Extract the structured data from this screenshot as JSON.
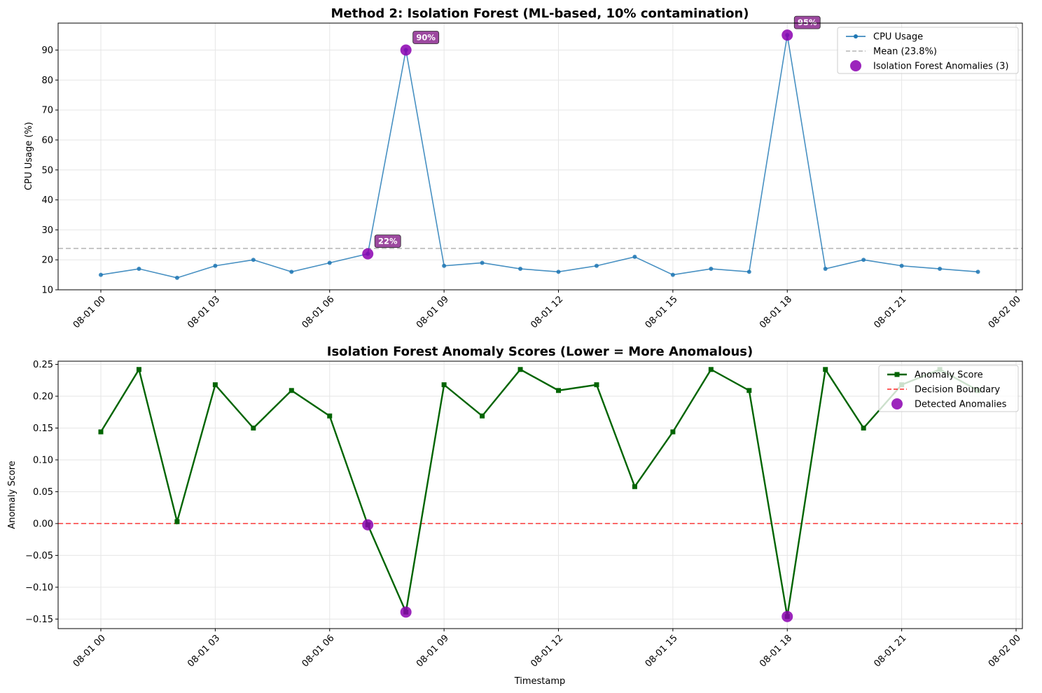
{
  "x_tick_labels": [
    "08-01 00",
    "08-01 03",
    "08-01 06",
    "08-01 09",
    "08-01 12",
    "08-01 15",
    "08-01 18",
    "08-01 21",
    "08-02 00"
  ],
  "colors": {
    "cpu_line": "#1f77b4",
    "mean_line": "#a9a9a9",
    "anomaly": "#8b00b0",
    "anomaly_label_bg": "#8b2a8f",
    "score_line": "#006400",
    "boundary": "#ff0000",
    "grid": "#e6e6e6"
  },
  "chart_data": [
    {
      "type": "line",
      "title": "Method 2: Isolation Forest (ML-based, 10% contamination)",
      "xlabel": "",
      "ylabel": "CPU Usage (%)",
      "x": [
        "08-01 00:00",
        "08-01 01:00",
        "08-01 02:00",
        "08-01 03:00",
        "08-01 04:00",
        "08-01 05:00",
        "08-01 06:00",
        "08-01 07:00",
        "08-01 08:00",
        "08-01 09:00",
        "08-01 10:00",
        "08-01 11:00",
        "08-01 12:00",
        "08-01 13:00",
        "08-01 14:00",
        "08-01 15:00",
        "08-01 16:00",
        "08-01 17:00",
        "08-01 18:00",
        "08-01 19:00",
        "08-01 20:00",
        "08-01 21:00",
        "08-01 22:00",
        "08-01 23:00"
      ],
      "series": [
        {
          "name": "CPU Usage",
          "values": [
            15,
            17,
            14,
            18,
            20,
            16,
            19,
            22,
            90,
            18,
            19,
            17,
            16,
            18,
            21,
            15,
            17,
            16,
            95,
            17,
            20,
            18,
            17,
            16
          ]
        }
      ],
      "reference_lines": [
        {
          "name": "Mean (23.8%)",
          "value": 23.8
        }
      ],
      "anomalies": {
        "name": "Isolation Forest Anomalies (3)",
        "indices": [
          7,
          8,
          18
        ]
      },
      "annotations": [
        "22%",
        "90%",
        "95%"
      ],
      "ylim": [
        10,
        99
      ],
      "yticks": [
        10,
        20,
        30,
        40,
        50,
        60,
        70,
        80,
        90
      ],
      "grid": true,
      "legend": "top-right"
    },
    {
      "type": "line",
      "title": "Isolation Forest Anomaly Scores (Lower = More Anomalous)",
      "xlabel": "Timestamp",
      "ylabel": "Anomaly Score",
      "x": [
        "08-01 00:00",
        "08-01 01:00",
        "08-01 02:00",
        "08-01 03:00",
        "08-01 04:00",
        "08-01 05:00",
        "08-01 06:00",
        "08-01 07:00",
        "08-01 08:00",
        "08-01 09:00",
        "08-01 10:00",
        "08-01 11:00",
        "08-01 12:00",
        "08-01 13:00",
        "08-01 14:00",
        "08-01 15:00",
        "08-01 16:00",
        "08-01 17:00",
        "08-01 18:00",
        "08-01 19:00",
        "08-01 20:00",
        "08-01 21:00",
        "08-01 22:00",
        "08-01 23:00"
      ],
      "series": [
        {
          "name": "Anomaly Score",
          "values": [
            0.144,
            0.242,
            0.003,
            0.218,
            0.15,
            0.209,
            0.169,
            -0.002,
            -0.139,
            0.218,
            0.169,
            0.242,
            0.209,
            0.218,
            0.058,
            0.144,
            0.242,
            0.209,
            -0.146,
            0.242,
            0.15,
            0.218,
            0.242,
            0.209
          ]
        }
      ],
      "reference_lines": [
        {
          "name": "Decision Boundary",
          "value": 0
        }
      ],
      "anomalies": {
        "name": "Detected Anomalies",
        "indices": [
          7,
          8,
          18
        ]
      },
      "ylim": [
        -0.165,
        0.255
      ],
      "yticks": [
        -0.15,
        -0.1,
        -0.05,
        0.0,
        0.05,
        0.1,
        0.15,
        0.2,
        0.25
      ],
      "ytick_labels": [
        "−0.15",
        "−0.10",
        "−0.05",
        "0.00",
        "0.05",
        "0.10",
        "0.15",
        "0.20",
        "0.25"
      ],
      "grid": true,
      "legend": "top-right"
    }
  ]
}
